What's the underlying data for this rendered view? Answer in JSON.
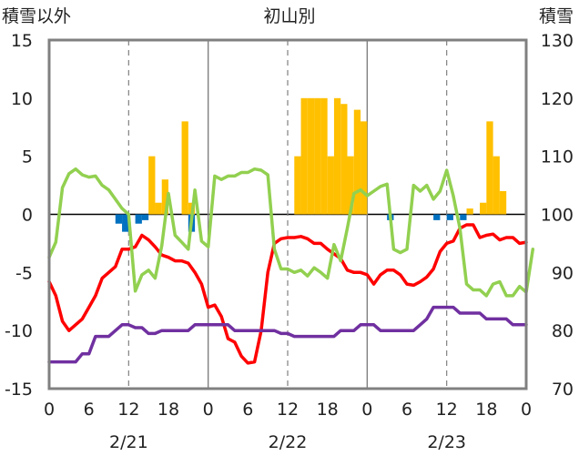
{
  "chart_data": {
    "type": "bar+line",
    "title": "初山別",
    "left_axis_title": "積雪以外",
    "right_axis_title": "積雪",
    "y_left": {
      "min": -15,
      "max": 15,
      "ticks": [
        "-15",
        "-10",
        "-5",
        "0",
        "5",
        "10",
        "15"
      ]
    },
    "y_right": {
      "min": 70,
      "max": 130,
      "ticks": [
        "70",
        "80",
        "90",
        "100",
        "110",
        "120",
        "130"
      ]
    },
    "x_hours_per_day": 24,
    "x_tick_labels": [
      "0",
      "6",
      "12",
      "18",
      "0",
      "6",
      "12",
      "18",
      "0",
      "6",
      "12",
      "18",
      "0"
    ],
    "dates": [
      "2/21",
      "2/22",
      "2/23"
    ],
    "colors": {
      "precip": "#FFC000",
      "negative_bar": "#0070C0",
      "temperature": "#FF0000",
      "wind": "#92D050",
      "snow_depth": "#7030A0",
      "frame": "#808080",
      "grid": "#808080"
    },
    "bars": [
      {
        "x": 10.5,
        "value": -0.8,
        "color": "negative_bar"
      },
      {
        "x": 11.5,
        "value": -1.5,
        "color": "negative_bar"
      },
      {
        "x": 13.5,
        "value": -0.8,
        "color": "negative_bar"
      },
      {
        "x": 14.5,
        "value": -0.5,
        "color": "negative_bar"
      },
      {
        "x": 15.5,
        "value": 5,
        "color": "precip"
      },
      {
        "x": 16.5,
        "value": 1,
        "color": "precip"
      },
      {
        "x": 17.5,
        "value": 3,
        "color": "precip"
      },
      {
        "x": 20.5,
        "value": 8,
        "color": "precip"
      },
      {
        "x": 21.5,
        "value": 1,
        "color": "precip"
      },
      {
        "x": 21.5,
        "value": -1.5,
        "color": "negative_bar"
      },
      {
        "x": 37.5,
        "value": 5,
        "color": "precip"
      },
      {
        "x": 38.5,
        "value": 10,
        "color": "precip"
      },
      {
        "x": 39.5,
        "value": 10,
        "color": "precip"
      },
      {
        "x": 40.5,
        "value": 10,
        "color": "precip"
      },
      {
        "x": 41.5,
        "value": 10,
        "color": "precip"
      },
      {
        "x": 42.5,
        "value": 5,
        "color": "precip"
      },
      {
        "x": 43.5,
        "value": 10,
        "color": "precip"
      },
      {
        "x": 44.5,
        "value": 9.5,
        "color": "precip"
      },
      {
        "x": 45.5,
        "value": 5,
        "color": "precip"
      },
      {
        "x": 46.5,
        "value": 9,
        "color": "precip"
      },
      {
        "x": 47.5,
        "value": 8,
        "color": "precip"
      },
      {
        "x": 51.5,
        "value": -0.5,
        "color": "negative_bar"
      },
      {
        "x": 58.5,
        "value": -0.5,
        "color": "negative_bar"
      },
      {
        "x": 60.5,
        "value": -0.5,
        "color": "negative_bar"
      },
      {
        "x": 62.5,
        "value": -0.5,
        "color": "negative_bar"
      },
      {
        "x": 63.5,
        "value": 0.5,
        "color": "precip"
      },
      {
        "x": 65.5,
        "value": 1,
        "color": "precip"
      },
      {
        "x": 66.5,
        "value": 8,
        "color": "precip"
      },
      {
        "x": 67.5,
        "value": 5,
        "color": "precip"
      },
      {
        "x": 68.5,
        "value": 2,
        "color": "precip"
      }
    ],
    "series": [
      {
        "color": "temperature",
        "axis": "left",
        "points": [
          [
            0,
            -5.8
          ],
          [
            1,
            -7
          ],
          [
            2,
            -9.2
          ],
          [
            3,
            -10
          ],
          [
            4,
            -9.5
          ],
          [
            5,
            -9
          ],
          [
            6,
            -8
          ],
          [
            7,
            -7
          ],
          [
            8,
            -5.5
          ],
          [
            9,
            -5
          ],
          [
            10,
            -4.5
          ],
          [
            11,
            -3
          ],
          [
            12,
            -3
          ],
          [
            13,
            -2.8
          ],
          [
            14,
            -1.8
          ],
          [
            15,
            -2.2
          ],
          [
            16,
            -2.8
          ],
          [
            17,
            -3.5
          ],
          [
            18,
            -3.7
          ],
          [
            19,
            -4
          ],
          [
            20,
            -4
          ],
          [
            21,
            -4.2
          ],
          [
            22,
            -5
          ],
          [
            23,
            -6
          ],
          [
            24,
            -8
          ],
          [
            25,
            -7.8
          ],
          [
            26,
            -8.8
          ],
          [
            27,
            -10.7
          ],
          [
            28,
            -11
          ],
          [
            29,
            -12.2
          ],
          [
            30,
            -12.8
          ],
          [
            31,
            -12.7
          ],
          [
            32,
            -10
          ],
          [
            33,
            -5
          ],
          [
            34,
            -2.5
          ],
          [
            35,
            -2.1
          ],
          [
            36,
            -2
          ],
          [
            37,
            -2
          ],
          [
            38,
            -1.9
          ],
          [
            39,
            -2.1
          ],
          [
            40,
            -2.5
          ],
          [
            41,
            -2.5
          ],
          [
            42,
            -3
          ],
          [
            43,
            -3.4
          ],
          [
            44,
            -3.8
          ],
          [
            45,
            -4.8
          ],
          [
            46,
            -5
          ],
          [
            47,
            -5
          ],
          [
            48,
            -5.2
          ],
          [
            49,
            -6
          ],
          [
            50,
            -5.2
          ],
          [
            51,
            -4.8
          ],
          [
            52,
            -4.8
          ],
          [
            53,
            -5.2
          ],
          [
            54,
            -6
          ],
          [
            55,
            -6.1
          ],
          [
            56,
            -5.8
          ],
          [
            57,
            -5.4
          ],
          [
            58,
            -4.7
          ],
          [
            59,
            -3.2
          ],
          [
            60,
            -2.5
          ],
          [
            61,
            -2.3
          ],
          [
            62,
            -1.2
          ],
          [
            63,
            -0.9
          ],
          [
            64,
            -0.9
          ],
          [
            65,
            -2
          ],
          [
            66,
            -1.8
          ],
          [
            67,
            -1.7
          ],
          [
            68,
            -2.2
          ],
          [
            69,
            -2
          ],
          [
            70,
            -2
          ],
          [
            71,
            -2.5
          ],
          [
            72,
            -2.4
          ]
        ]
      },
      {
        "color": "wind",
        "axis": "left",
        "points": [
          [
            0,
            -3.7
          ],
          [
            1,
            -2.4
          ],
          [
            2,
            2.3
          ],
          [
            3,
            3.5
          ],
          [
            4,
            3.9
          ],
          [
            5,
            3.4
          ],
          [
            6,
            3.2
          ],
          [
            7,
            3.3
          ],
          [
            8,
            2.5
          ],
          [
            9,
            2.1
          ],
          [
            10,
            1.3
          ],
          [
            11,
            0.5
          ],
          [
            12,
            0
          ],
          [
            13,
            -6.6
          ],
          [
            14,
            -5.2
          ],
          [
            15,
            -4.8
          ],
          [
            16,
            -5.5
          ],
          [
            17,
            -2.7
          ],
          [
            18,
            1.8
          ],
          [
            19,
            -1.8
          ],
          [
            20,
            -2.4
          ],
          [
            21,
            -3
          ],
          [
            22,
            2.1
          ],
          [
            23,
            -2.3
          ],
          [
            24,
            -2.8
          ],
          [
            25,
            3.3
          ],
          [
            26,
            3
          ],
          [
            27,
            3.3
          ],
          [
            28,
            3.3
          ],
          [
            29,
            3.6
          ],
          [
            30,
            3.6
          ],
          [
            31,
            3.9
          ],
          [
            32,
            3.8
          ],
          [
            33,
            3.4
          ],
          [
            34,
            -3
          ],
          [
            35,
            -4.7
          ],
          [
            36,
            -4.7
          ],
          [
            37,
            -5
          ],
          [
            38,
            -4.8
          ],
          [
            39,
            -5.3
          ],
          [
            40,
            -4.6
          ],
          [
            41,
            -5
          ],
          [
            42,
            -5.5
          ],
          [
            43,
            -2.6
          ],
          [
            44,
            -4
          ],
          [
            45,
            -1.2
          ],
          [
            46,
            1.8
          ],
          [
            47,
            2.1
          ],
          [
            48,
            1.6
          ],
          [
            49,
            2
          ],
          [
            50,
            2.4
          ],
          [
            51,
            2.6
          ],
          [
            52,
            -3
          ],
          [
            53,
            -3.3
          ],
          [
            54,
            -3
          ],
          [
            55,
            2.5
          ],
          [
            56,
            2
          ],
          [
            57,
            2.5
          ],
          [
            58,
            1.3
          ],
          [
            59,
            2
          ],
          [
            60,
            3.8
          ],
          [
            61,
            1.6
          ],
          [
            62,
            -1.2
          ],
          [
            63,
            -6
          ],
          [
            64,
            -6.5
          ],
          [
            65,
            -6.5
          ],
          [
            66,
            -7
          ],
          [
            67,
            -6
          ],
          [
            68,
            -5.8
          ],
          [
            69,
            -7
          ],
          [
            70,
            -7
          ],
          [
            71,
            -6.2
          ],
          [
            72,
            -6.7
          ],
          [
            73,
            -3
          ]
        ]
      },
      {
        "color": "snow_depth",
        "axis": "right",
        "points": [
          [
            0,
            74.6
          ],
          [
            4,
            74.6
          ],
          [
            5,
            76
          ],
          [
            6,
            76
          ],
          [
            7,
            79
          ],
          [
            8,
            79
          ],
          [
            9,
            79
          ],
          [
            10,
            80
          ],
          [
            11,
            81
          ],
          [
            12,
            81
          ],
          [
            13,
            80.5
          ],
          [
            14,
            80.5
          ],
          [
            15,
            79.5
          ],
          [
            16,
            79.5
          ],
          [
            17,
            80
          ],
          [
            18,
            80
          ],
          [
            21,
            80
          ],
          [
            22,
            81
          ],
          [
            23,
            81
          ],
          [
            24,
            81
          ],
          [
            27,
            81
          ],
          [
            28,
            80
          ],
          [
            29,
            80
          ],
          [
            34,
            80
          ],
          [
            35,
            79.5
          ],
          [
            36,
            79.5
          ],
          [
            37,
            79
          ],
          [
            38,
            79
          ],
          [
            43,
            79
          ],
          [
            44,
            80
          ],
          [
            45,
            80
          ],
          [
            46,
            80
          ],
          [
            47,
            81
          ],
          [
            48,
            81
          ],
          [
            49,
            81
          ],
          [
            50,
            80
          ],
          [
            51,
            80
          ],
          [
            52,
            80
          ],
          [
            53,
            80
          ],
          [
            54,
            80
          ],
          [
            55,
            80
          ],
          [
            56,
            81
          ],
          [
            57,
            82
          ],
          [
            58,
            84
          ],
          [
            59,
            84
          ],
          [
            60,
            84
          ],
          [
            61,
            84
          ],
          [
            62,
            83
          ],
          [
            63,
            83
          ],
          [
            64,
            83
          ],
          [
            65,
            83
          ],
          [
            66,
            82
          ],
          [
            67,
            82
          ],
          [
            68,
            82
          ],
          [
            69,
            82
          ],
          [
            70,
            81
          ],
          [
            71,
            81
          ],
          [
            72,
            81
          ]
        ]
      }
    ]
  }
}
